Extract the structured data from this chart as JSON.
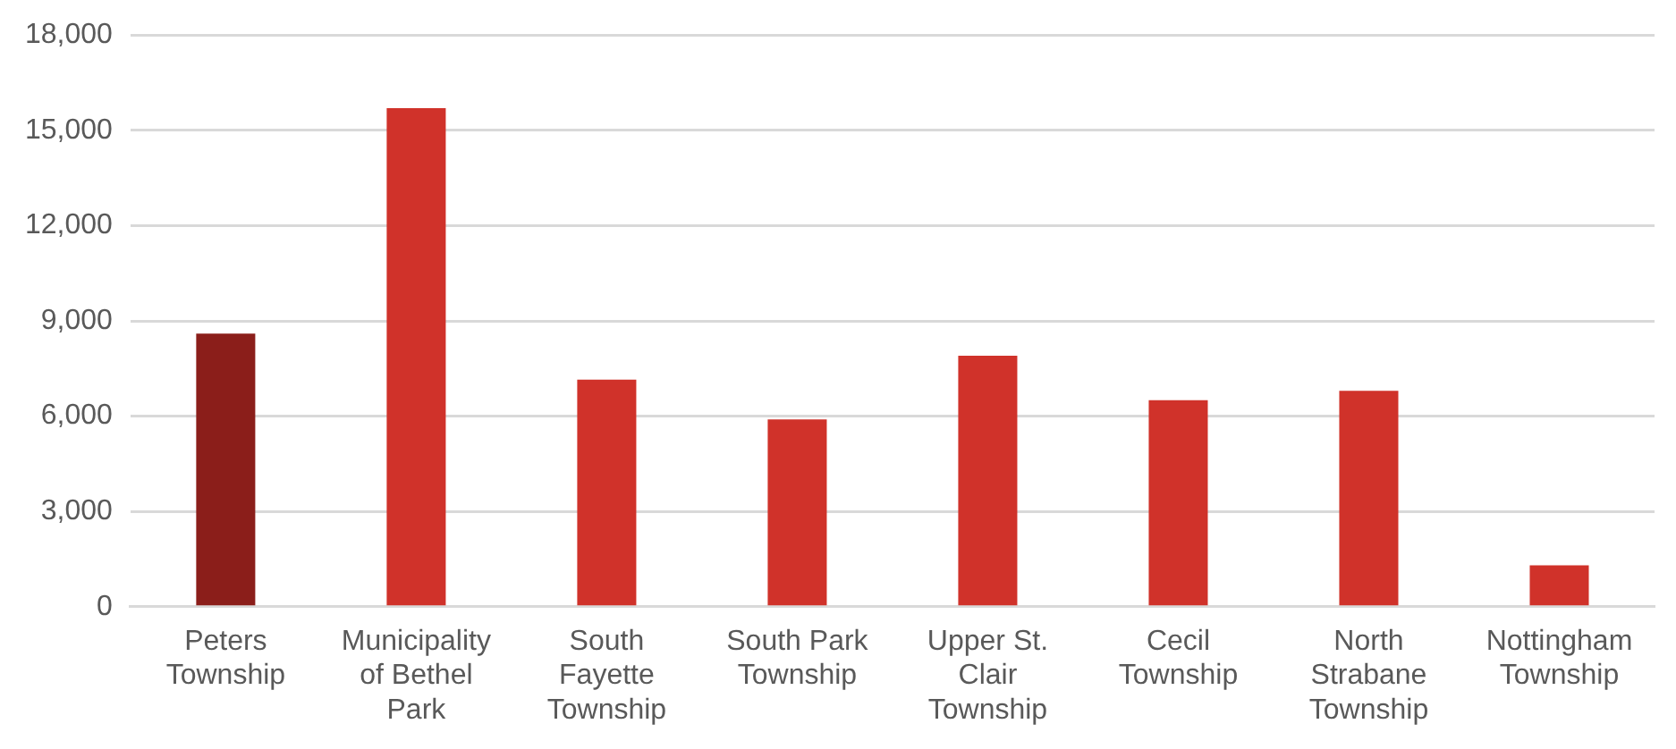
{
  "chart_data": {
    "type": "bar",
    "categories": [
      "Peters Township",
      "Municipality of Bethel Park",
      "South Fayette Township",
      "South Park Township",
      "Upper St. Clair Township",
      "Cecil Township",
      "North Strabane Township",
      "Nottingham Township"
    ],
    "values": [
      8600,
      15700,
      7150,
      5900,
      7900,
      6500,
      6800,
      1300
    ],
    "colors": [
      "#8b1e1a",
      "#d0322a",
      "#d0322a",
      "#d0322a",
      "#d0322a",
      "#d0322a",
      "#d0322a",
      "#d0322a"
    ],
    "ylim": [
      0,
      18000
    ],
    "yticks": [
      0,
      {
        "value": 3000,
        "label": "3,000"
      },
      {
        "value": 6000,
        "label": "6,000"
      },
      {
        "value": 9000,
        "label": "9,000"
      },
      {
        "value": 12000,
        "label": "12,000"
      },
      {
        "value": 15000,
        "label": "15,000"
      },
      {
        "value": 18000,
        "label": "18,000"
      }
    ],
    "grid": "y",
    "legend": false
  }
}
